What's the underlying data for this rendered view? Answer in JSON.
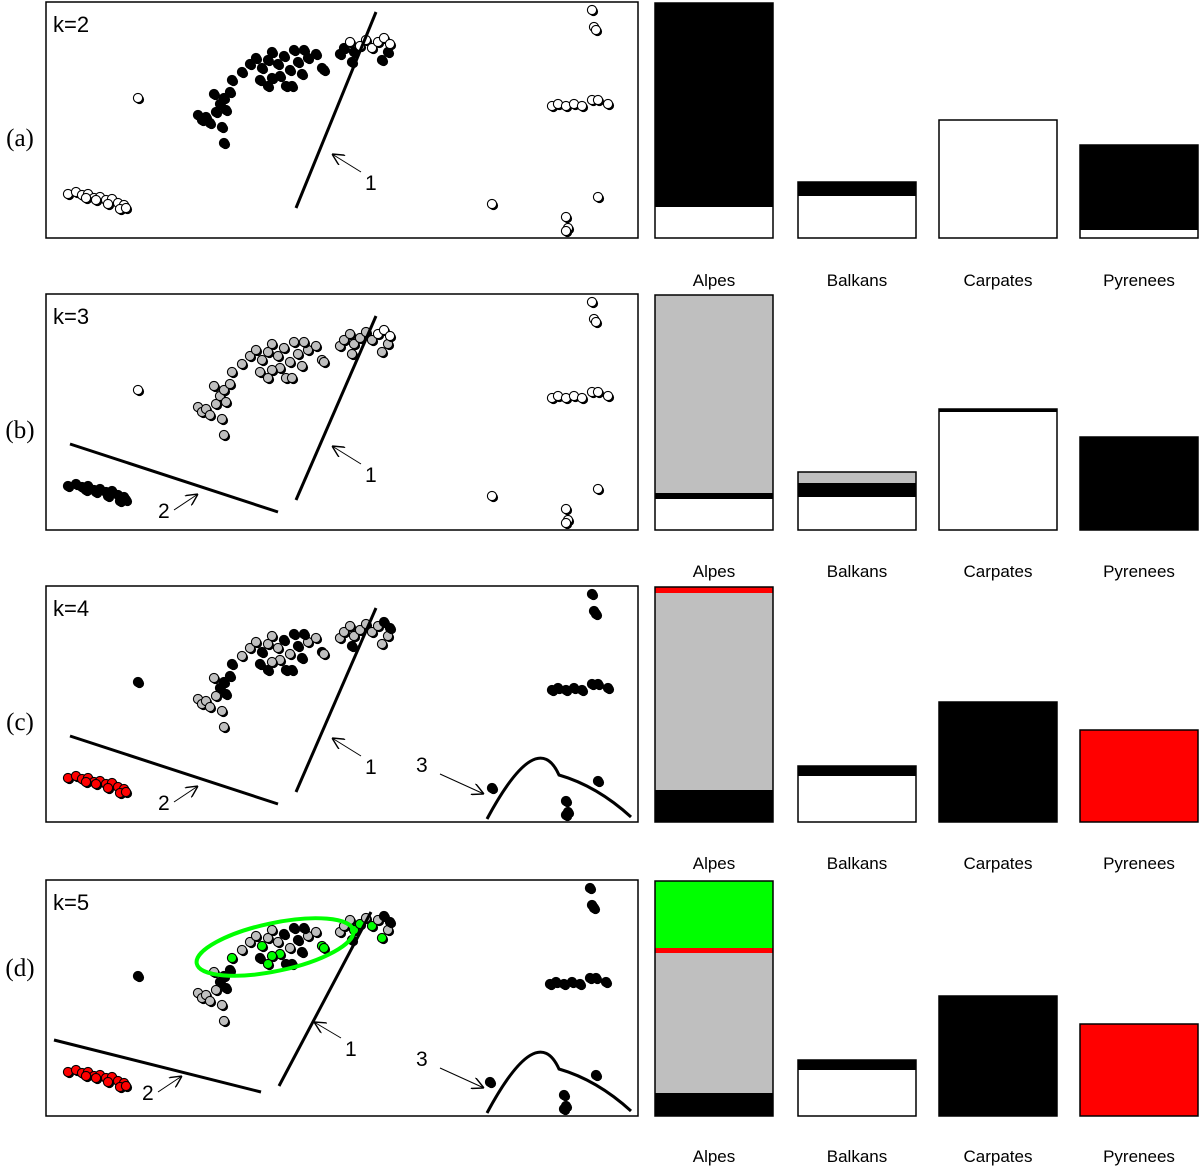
{
  "colors": {
    "cluster_black": "#000000",
    "cluster_white": "#ffffff",
    "cluster_gray": "#bfbfbf",
    "cluster_red": "#ff0000",
    "cluster_green": "#00ff00"
  },
  "categories": [
    "Alpes",
    "Balkans",
    "Carpates",
    "Pyrenees"
  ],
  "chart_data": [
    {
      "type": "bar",
      "stacked": true,
      "panel": "(a)",
      "k_label": "k=2",
      "categories": [
        "Alpes",
        "Balkans",
        "Carpates",
        "Pyrenees"
      ],
      "arrows": [
        "1"
      ],
      "series": [
        {
          "color": "white",
          "values": [
            31,
            42,
            118,
            8
          ]
        },
        {
          "color": "black",
          "values": [
            204,
            14,
            0,
            85
          ]
        }
      ]
    },
    {
      "type": "bar",
      "stacked": true,
      "panel": "(b)",
      "k_label": "k=3",
      "categories": [
        "Alpes",
        "Balkans",
        "Carpates",
        "Pyrenees"
      ],
      "arrows": [
        "1",
        "2"
      ],
      "series": [
        {
          "color": "white",
          "values": [
            31,
            33,
            118,
            0
          ]
        },
        {
          "color": "black",
          "values": [
            6,
            14,
            3,
            93
          ]
        },
        {
          "color": "gray",
          "values": [
            198,
            11,
            0,
            0
          ]
        }
      ]
    },
    {
      "type": "bar",
      "stacked": true,
      "panel": "(c)",
      "k_label": "k=4",
      "categories": [
        "Alpes",
        "Balkans",
        "Carpates",
        "Pyrenees"
      ],
      "arrows": [
        "1",
        "2",
        "3"
      ],
      "series": [
        {
          "color": "white",
          "values": [
            0,
            46,
            0,
            0
          ]
        },
        {
          "color": "black",
          "values": [
            32,
            10,
            120,
            0
          ]
        },
        {
          "color": "gray",
          "values": [
            197,
            0,
            0,
            0
          ]
        },
        {
          "color": "red",
          "values": [
            6,
            0,
            0,
            92
          ]
        }
      ]
    },
    {
      "type": "bar",
      "stacked": true,
      "panel": "(d)",
      "k_label": "k=5",
      "categories": [
        "Alpes",
        "Balkans",
        "Carpates",
        "Pyrenees"
      ],
      "arrows": [
        "1",
        "2",
        "3"
      ],
      "series": [
        {
          "color": "white",
          "values": [
            0,
            46,
            0,
            0
          ]
        },
        {
          "color": "black",
          "values": [
            23,
            10,
            120,
            0
          ]
        },
        {
          "color": "gray",
          "values": [
            140,
            0,
            0,
            0
          ]
        },
        {
          "color": "red",
          "values": [
            5,
            0,
            0,
            92
          ]
        },
        {
          "color": "green",
          "values": [
            67,
            0,
            0,
            0
          ]
        }
      ]
    }
  ]
}
